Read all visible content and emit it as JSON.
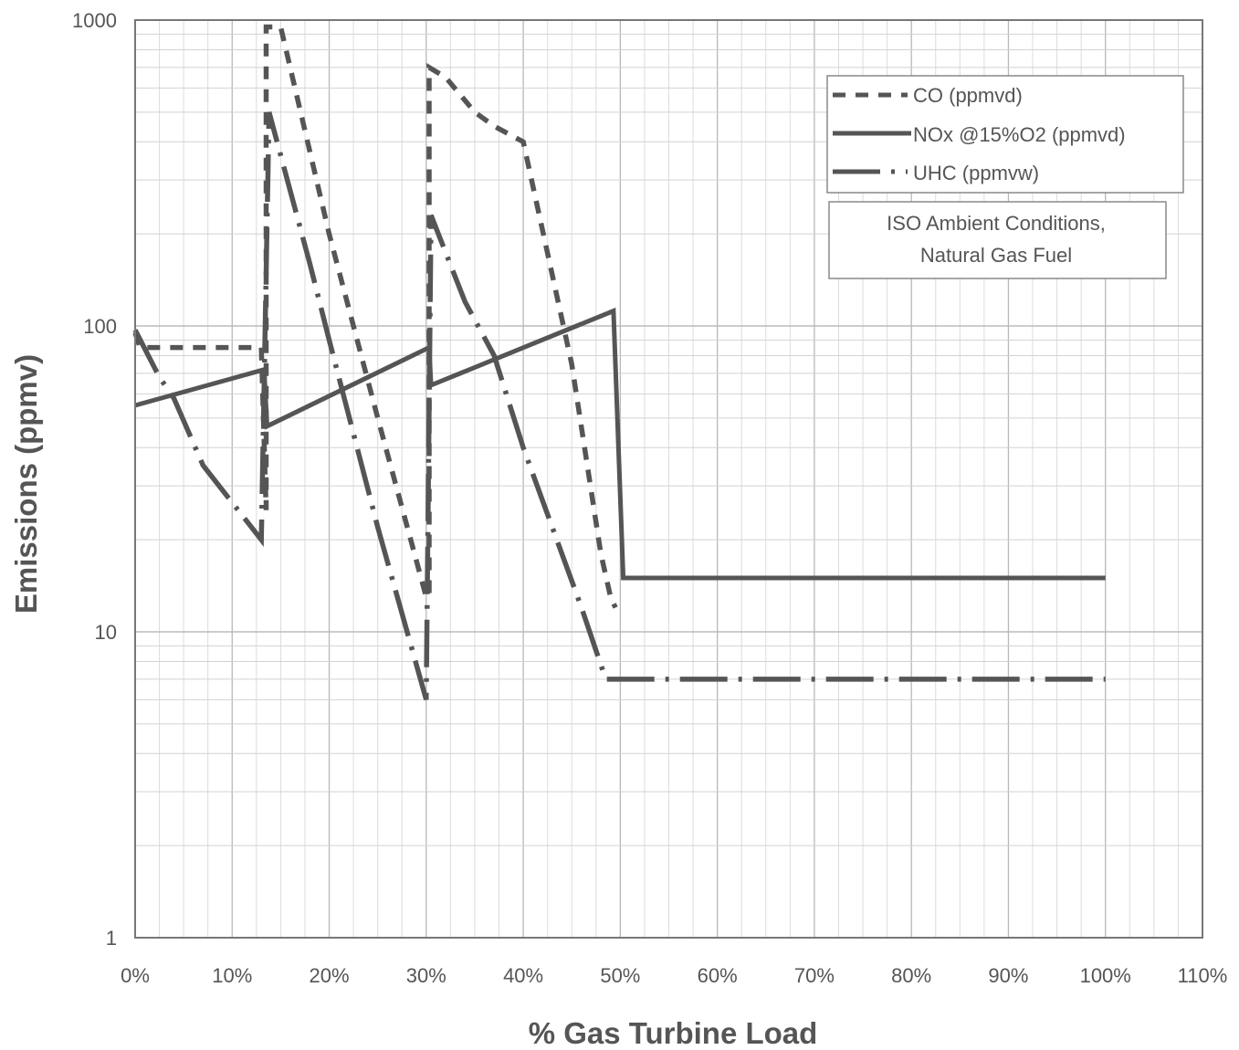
{
  "chart_data": {
    "type": "line",
    "xlabel": "% Gas Turbine Load",
    "ylabel": "Emissions (ppmv)",
    "x_range": [
      0,
      110
    ],
    "y_range": [
      1,
      1000
    ],
    "y_scale": "log",
    "grid": true,
    "legend_position": "top-right",
    "x_ticks": [
      "0%",
      "10%",
      "20%",
      "30%",
      "40%",
      "50%",
      "60%",
      "70%",
      "80%",
      "90%",
      "100%",
      "110%"
    ],
    "x_tick_values": [
      0,
      10,
      20,
      30,
      40,
      50,
      60,
      70,
      80,
      90,
      100,
      110
    ],
    "y_ticks": [
      "1",
      "10",
      "100",
      "1000"
    ],
    "y_tick_values": [
      1,
      10,
      100,
      1000
    ],
    "note": [
      "ISO Ambient Conditions,",
      "Natural Gas Fuel"
    ],
    "series": [
      {
        "name": "CO (ppmvd)",
        "style": "dashed",
        "color": "#555555",
        "points": [
          [
            0,
            95
          ],
          [
            0.5,
            85
          ],
          [
            13,
            85
          ],
          [
            13.5,
            25
          ],
          [
            13.5,
            950
          ],
          [
            15,
            950
          ],
          [
            20,
            200
          ],
          [
            25,
            50
          ],
          [
            30,
            13
          ],
          [
            30.3,
            13
          ],
          [
            30.3,
            700
          ],
          [
            32,
            650
          ],
          [
            35,
            500
          ],
          [
            37,
            450
          ],
          [
            40,
            400
          ],
          [
            45,
            75
          ],
          [
            48,
            18
          ],
          [
            49,
            13
          ],
          [
            49.5,
            12
          ]
        ]
      },
      {
        "name": "NOx @15%O2 (ppmvd)",
        "style": "solid",
        "color": "#555555",
        "points": [
          [
            0,
            55
          ],
          [
            13.3,
            72
          ],
          [
            13.6,
            47
          ],
          [
            30.3,
            85
          ],
          [
            30.5,
            64
          ],
          [
            49.3,
            112
          ],
          [
            50.3,
            15
          ],
          [
            100,
            15
          ]
        ]
      },
      {
        "name": "UHC (ppmvw)",
        "style": "dashdot",
        "color": "#555555",
        "points": [
          [
            0,
            97
          ],
          [
            2.5,
            68
          ],
          [
            4,
            58
          ],
          [
            7,
            35
          ],
          [
            13,
            20
          ],
          [
            13.8,
            500
          ],
          [
            18,
            160
          ],
          [
            20,
            90
          ],
          [
            25,
            22
          ],
          [
            30,
            6
          ],
          [
            30.5,
            230
          ],
          [
            34,
            120
          ],
          [
            37,
            80
          ],
          [
            40,
            40
          ],
          [
            46,
            12
          ],
          [
            48.5,
            7
          ],
          [
            50,
            7
          ],
          [
            100,
            7
          ]
        ]
      }
    ]
  }
}
